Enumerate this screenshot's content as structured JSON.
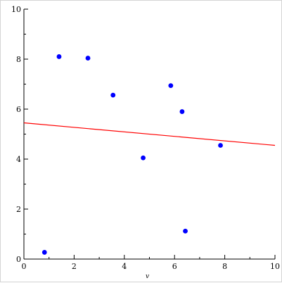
{
  "chart_data": {
    "type": "scatter",
    "title": "",
    "xlabel": "v",
    "ylabel": "",
    "xlim": [
      0,
      10
    ],
    "ylim": [
      0,
      10
    ],
    "x_ticks": [
      0,
      2,
      4,
      6,
      8,
      10
    ],
    "y_ticks": [
      0,
      2,
      4,
      6,
      8,
      10
    ],
    "grid": false,
    "series": [
      {
        "type": "scatter",
        "color": "#0000ff",
        "points": [
          {
            "x": 0.82,
            "y": 0.27
          },
          {
            "x": 1.4,
            "y": 8.1
          },
          {
            "x": 2.55,
            "y": 8.04
          },
          {
            "x": 3.55,
            "y": 6.56
          },
          {
            "x": 4.75,
            "y": 4.05
          },
          {
            "x": 5.85,
            "y": 6.94
          },
          {
            "x": 6.3,
            "y": 5.9
          },
          {
            "x": 6.43,
            "y": 1.12
          },
          {
            "x": 7.83,
            "y": 4.55
          }
        ]
      },
      {
        "type": "line",
        "color": "#ff0000",
        "points": [
          {
            "x": 0,
            "y": 5.45
          },
          {
            "x": 10,
            "y": 4.55
          }
        ]
      }
    ]
  }
}
